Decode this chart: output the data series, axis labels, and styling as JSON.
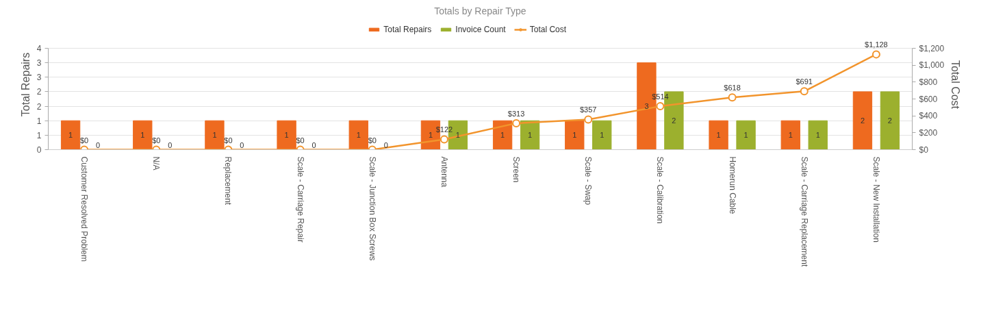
{
  "chart_data": {
    "type": "bar",
    "title": "Totals by Repair Type",
    "ylabel": "Total Repairs",
    "y2label": "Total Cost",
    "categories": [
      "Customer Resolved Problem",
      "N/A",
      "Replacement",
      "Scale - Carriage Repair",
      "Scale - Junction Box Screws",
      "Antenna",
      "Screen",
      "Scale - Swap",
      "Scale - Calibration",
      "Homerun Cable",
      "Scale - Carriage Replacement",
      "Scale - New Installation"
    ],
    "series": [
      {
        "name": "Total Repairs",
        "color": "#ee6a1f",
        "values": [
          1,
          1,
          1,
          1,
          1,
          1,
          1,
          1,
          3,
          1,
          1,
          2
        ]
      },
      {
        "name": "Invoice Count",
        "color": "#9cb02e",
        "values": [
          0,
          0,
          0,
          0,
          0,
          1,
          1,
          1,
          2,
          1,
          1,
          2
        ]
      },
      {
        "name": "Total Cost",
        "type": "line",
        "axis": "y2",
        "color": "#f2942c",
        "marker": "circle",
        "values": [
          0,
          0,
          0,
          0,
          0,
          122,
          313,
          357,
          514,
          618,
          691,
          1128
        ],
        "value_labels": [
          "$0",
          "$0",
          "$0",
          "$0",
          "$0",
          "$122",
          "$313",
          "$357",
          "$514",
          "$618",
          "$691",
          "$1,128"
        ]
      }
    ],
    "ylim": [
      0,
      3.5
    ],
    "yticks": [
      0,
      {
        "value": 0.5,
        "label": "1"
      },
      1,
      {
        "value": 1.5,
        "label": "2"
      },
      2,
      {
        "value": 2.5,
        "label": "3"
      },
      3,
      {
        "value": 3.5,
        "label": "4"
      }
    ],
    "y2lim": [
      0,
      1200
    ],
    "y2ticks": [
      {
        "value": 0,
        "label": "$0"
      },
      {
        "value": 200,
        "label": "$200"
      },
      {
        "value": 400,
        "label": "$400"
      },
      {
        "value": 600,
        "label": "$600"
      },
      {
        "value": 800,
        "label": "$800"
      },
      {
        "value": 1000,
        "label": "$1,000"
      },
      {
        "value": 1200,
        "label": "$1,200"
      }
    ],
    "grid": "y",
    "legend": "top",
    "data_labels": true
  }
}
